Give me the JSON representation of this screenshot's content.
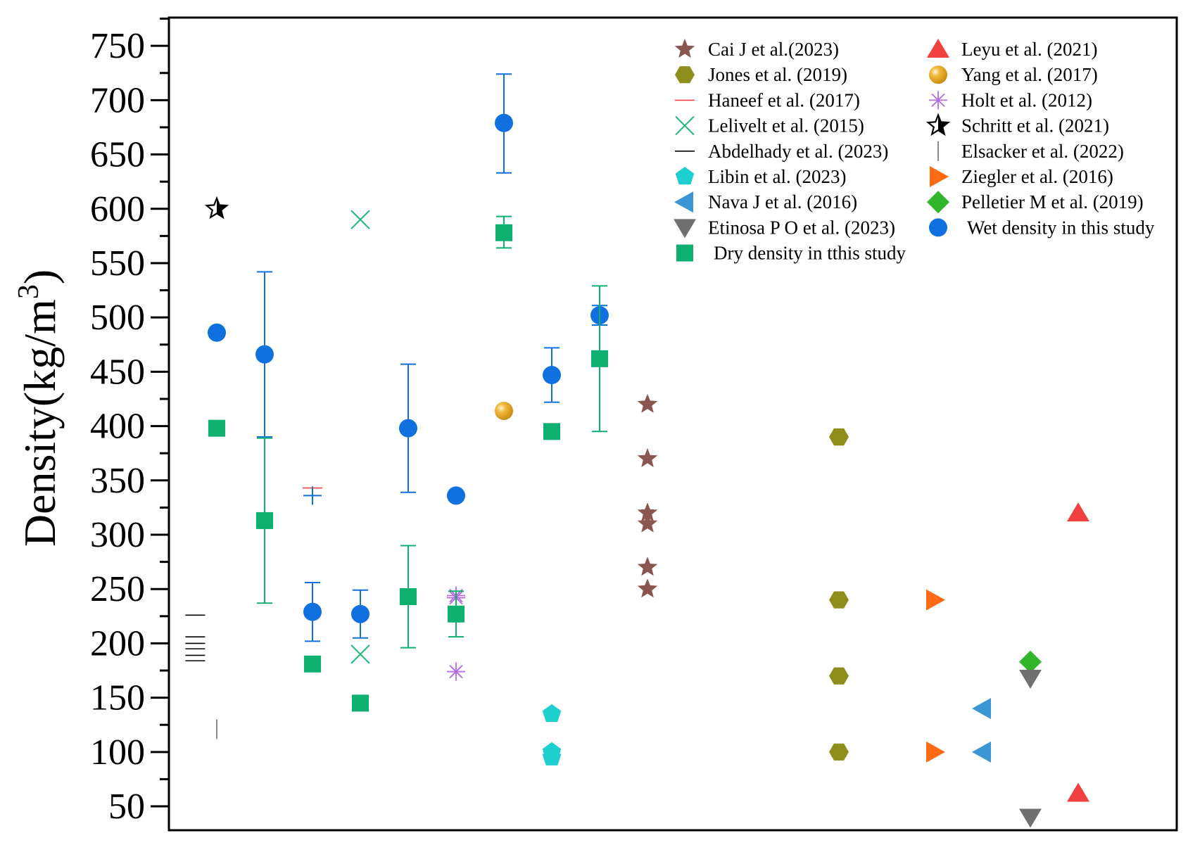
{
  "chart_data": {
    "type": "scatter",
    "title": "",
    "xlabel": "",
    "ylabel": {
      "main": "Density(kg/m",
      "superscript": "3",
      "close": ")"
    },
    "ylim": [
      28,
      776
    ],
    "xlim": [
      0,
      21
    ],
    "yticks": [
      "50",
      "100",
      "150",
      "200",
      "250",
      "300",
      "350",
      "400",
      "450",
      "500",
      "550",
      "600",
      "650",
      "700",
      "750"
    ],
    "legend_position": "top-right",
    "series": [
      {
        "name": "Cai J et al.(2023)",
        "marker": "star",
        "color": "#8B5550",
        "points": [
          {
            "x": 10,
            "y": 420
          },
          {
            "x": 10,
            "y": 370
          },
          {
            "x": 10,
            "y": 320
          },
          {
            "x": 10,
            "y": 310
          },
          {
            "x": 10,
            "y": 270
          },
          {
            "x": 10,
            "y": 250
          }
        ]
      },
      {
        "name": "Leyu et al. (2021)",
        "marker": "triangle-up",
        "color": "#F24040",
        "points": [
          {
            "x": 19,
            "y": 320
          },
          {
            "x": 19,
            "y": 62
          }
        ]
      },
      {
        "name": "Jones et al. (2019)",
        "marker": "hexagon",
        "color": "#8E8E1C",
        "points": [
          {
            "x": 14,
            "y": 390
          },
          {
            "x": 14,
            "y": 240
          },
          {
            "x": 14,
            "y": 170
          },
          {
            "x": 14,
            "y": 100
          }
        ]
      },
      {
        "name": "Yang et al. (2017)",
        "marker": "sphere",
        "color": "#E0A020",
        "points": [
          {
            "x": 7,
            "y": 414
          }
        ]
      },
      {
        "name": "Haneef et al. (2017)",
        "marker": "hline",
        "color": "#F24040",
        "points": [
          {
            "x": 3,
            "y": 343
          }
        ]
      },
      {
        "name": "Holt et al. (2012)",
        "marker": "asterisk",
        "color": "#B86BE0",
        "points": [
          {
            "x": 6,
            "y": 244
          },
          {
            "x": 6,
            "y": 242
          },
          {
            "x": 6,
            "y": 174
          }
        ]
      },
      {
        "name": "Lelivelt et al. (2015)",
        "marker": "x",
        "color": "#1FB577",
        "points": [
          {
            "x": 4,
            "y": 590
          },
          {
            "x": 4,
            "y": 190
          }
        ]
      },
      {
        "name": "Schritt et al. (2021)",
        "marker": "star-open",
        "color": "#000000",
        "points": [
          {
            "x": 1,
            "y": 600
          }
        ]
      },
      {
        "name": "Abdelhady et al. (2023)",
        "marker": "hline",
        "color": "#000000",
        "points": [
          {
            "x": 0.55,
            "y": 226
          },
          {
            "x": 0.55,
            "y": 206
          },
          {
            "x": 0.55,
            "y": 200
          },
          {
            "x": 0.55,
            "y": 195
          },
          {
            "x": 0.55,
            "y": 189
          },
          {
            "x": 0.55,
            "y": 184
          }
        ]
      },
      {
        "name": "Elsacker et al. (2022)",
        "marker": "vline",
        "color": "#707070",
        "points": [
          {
            "x": 1,
            "y": 121
          }
        ]
      },
      {
        "name": "Libin et al. (2023)",
        "marker": "pentagon",
        "color": "#1ECFCF",
        "points": [
          {
            "x": 8,
            "y": 135
          },
          {
            "x": 8,
            "y": 100
          },
          {
            "x": 8,
            "y": 95
          }
        ]
      },
      {
        "name": "Ziegler et al. (2016)",
        "marker": "triangle-right",
        "color": "#FF6A14",
        "points": [
          {
            "x": 16,
            "y": 240
          },
          {
            "x": 16,
            "y": 100
          }
        ]
      },
      {
        "name": "Nava J et al. (2016)",
        "marker": "triangle-left",
        "color": "#3A96D4",
        "points": [
          {
            "x": 17,
            "y": 140
          },
          {
            "x": 17,
            "y": 100
          }
        ]
      },
      {
        "name": "Pelletier M et al. (2019)",
        "marker": "diamond",
        "color": "#31B52B",
        "points": [
          {
            "x": 18,
            "y": 183
          }
        ]
      },
      {
        "name": "Etinosa P O et al. (2023)",
        "marker": "triangle-down",
        "color": "#707070",
        "points": [
          {
            "x": 18,
            "y": 168
          },
          {
            "x": 18,
            "y": 40
          }
        ]
      },
      {
        "name": "Wet density in this study",
        "marker": "circle",
        "color": "#1070E0",
        "points": [
          {
            "x": 1,
            "y": 486,
            "err": null
          },
          {
            "x": 2,
            "y": 466,
            "err": [
              390,
              542
            ]
          },
          {
            "x": 3,
            "y": 229,
            "err": [
              202,
              256
            ]
          },
          {
            "x": 4,
            "y": 227,
            "err": [
              205,
              249
            ]
          },
          {
            "x": 5,
            "y": 398,
            "err": [
              339,
              457
            ]
          },
          {
            "x": 6,
            "y": 336,
            "err": null
          },
          {
            "x": 7,
            "y": 679,
            "err": [
              633,
              724
            ]
          },
          {
            "x": 8,
            "y": 447,
            "err": [
              422,
              472
            ]
          },
          {
            "x": 9,
            "y": 502,
            "err": [
              493,
              511
            ]
          }
        ]
      },
      {
        "name": "Dry density in tthis study",
        "marker": "square",
        "color": "#0EB070",
        "points": [
          {
            "x": 1,
            "y": 398,
            "err": null
          },
          {
            "x": 2,
            "y": 313,
            "err": [
              237,
              389
            ]
          },
          {
            "x": 3,
            "y": 181,
            "err": null
          },
          {
            "x": 4,
            "y": 145,
            "err": null
          },
          {
            "x": 5,
            "y": 243,
            "err": [
              196,
              290
            ]
          },
          {
            "x": 6,
            "y": 227,
            "err": [
              206,
              248
            ]
          },
          {
            "x": 7,
            "y": 578,
            "err": [
              564,
              593
            ]
          },
          {
            "x": 8,
            "y": 395,
            "err": null
          },
          {
            "x": 9,
            "y": 462,
            "err": [
              395,
              529
            ]
          }
        ]
      }
    ],
    "extra_marks": [
      {
        "name": "plus-marker",
        "marker": "plus",
        "color": "#1070E0",
        "x": 3,
        "y": 336
      }
    ],
    "legend": {
      "columns": [
        [
          "Cai J et al.(2023)",
          "Jones et al. (2019)",
          "Haneef et al. (2017)",
          "Lelivelt et al. (2015)",
          "Abdelhady et al. (2023)",
          "Libin et al. (2023)",
          "Nava J et al. (2016)",
          "Etinosa P O et al. (2023)",
          "Dry density in tthis study"
        ],
        [
          "Leyu et al. (2021)",
          "Yang et al. (2017)",
          "Holt et al. (2012)",
          "Schritt et al. (2021)",
          "Elsacker et al. (2022)",
          "Ziegler et al. (2016)",
          "Pelletier M et al. (2019)",
          "Wet density in this study"
        ]
      ]
    }
  }
}
